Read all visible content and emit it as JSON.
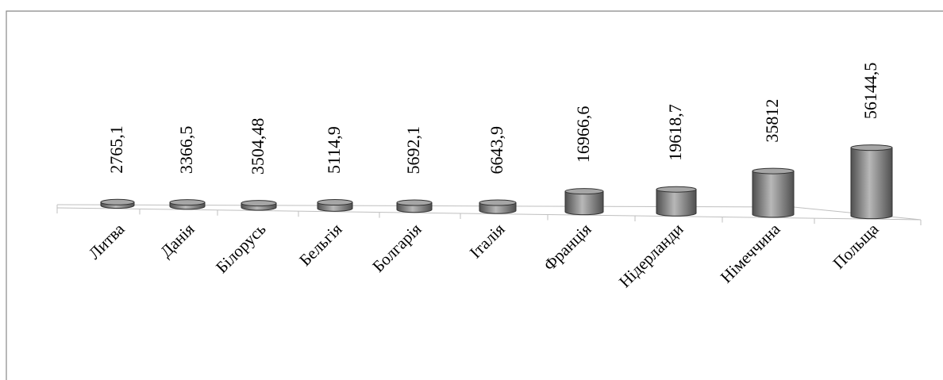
{
  "chart_data": {
    "type": "bar",
    "style": "3d-cylinder",
    "categories": [
      "Литва",
      "Данія",
      "Білорусь",
      "Бельгія",
      "Болгарія",
      "Італія",
      "Франція",
      "Нідерланди",
      "Німеччина",
      "Польща"
    ],
    "values": [
      2765.1,
      3366.5,
      3504.48,
      5114.9,
      5692.1,
      6643.9,
      16966.6,
      19618.7,
      35812,
      56144.5
    ],
    "value_labels": [
      "2765,1",
      "3366,5",
      "3504,48",
      "5114,9",
      "5692,1",
      "6643,9",
      "16966,6",
      "19618,7",
      "35812",
      "56144,5"
    ],
    "title": "",
    "xlabel": "",
    "ylabel": "",
    "legend": "none",
    "grid": false,
    "colors": {
      "bar": "#7f7f7f",
      "bar_light": "#b8b8b8",
      "bar_dark": "#4f4f4f",
      "axis": "#bfbfbf",
      "frame": "#888888"
    }
  }
}
